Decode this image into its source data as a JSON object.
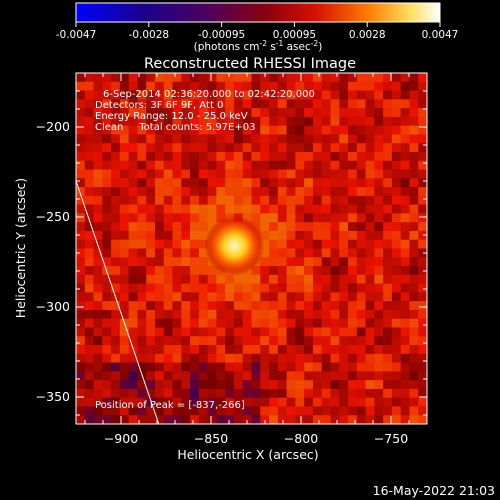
{
  "chart_data": {
    "type": "heatmap",
    "title": "Reconstructed RHESSI Image",
    "xlabel": "Heliocentric X (arcsec)",
    "ylabel": "Heliocentric Y (arcsec)",
    "xlim": [
      -925,
      -730
    ],
    "ylim": [
      -365,
      -170
    ],
    "xticks": [
      -900,
      -850,
      -800,
      -750
    ],
    "yticks": [
      -200,
      -250,
      -300,
      -350
    ],
    "colormap": "hot (black-blue-purple-red-orange-yellow-white)",
    "colorbar": {
      "range": [
        -0.0047,
        0.0047
      ],
      "ticks": [
        "-0.0047",
        "-0.0028",
        "-0.00095",
        "0.00095",
        "0.0028",
        "0.0047"
      ],
      "unit_label_parts": [
        "(photons cm",
        "-2",
        " s",
        "-1",
        " asec",
        "-2",
        ")"
      ]
    },
    "info_lines": [
      "6-Sep-2014 02:36:20.000 to 02:42:20.000",
      "Detectors: 3F 6F 9F, Att 0",
      "Energy Range: 12.0 - 25.0 keV",
      "Clean     Total counts: 5.97E+03"
    ],
    "peak": {
      "label": "Position of Peak = [-837,-266]",
      "x": -837,
      "y": -266
    },
    "limb_curve": [
      [
        -925,
        -230
      ],
      [
        -879,
        -365
      ]
    ]
  },
  "timestamp": "16-May-2022 21:03"
}
